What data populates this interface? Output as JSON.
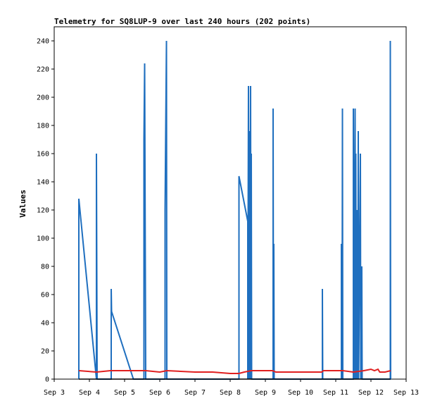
{
  "chart_data": {
    "type": "line",
    "title": "Telemetry for SQ8LUP-9 over last 240 hours (202 points)",
    "xlabel": "",
    "ylabel": "Values",
    "x_unit": "date (September)",
    "xlim": [
      3,
      13
    ],
    "ylim": [
      0,
      250
    ],
    "x_ticks": [
      3,
      4,
      5,
      6,
      7,
      8,
      9,
      10,
      11,
      12,
      13
    ],
    "x_tick_labels": [
      "Sep 3",
      "Sep 4",
      "Sep 5",
      "Sep 6",
      "Sep 7",
      "Sep 8",
      "Sep 9",
      "Sep 10",
      "Sep 11",
      "Sep 12",
      "Sep 13"
    ],
    "y_ticks": [
      0,
      20,
      40,
      60,
      80,
      100,
      120,
      140,
      160,
      180,
      200,
      220,
      240
    ],
    "grid": false,
    "legend": "none",
    "series": [
      {
        "color": "#1f6fbf",
        "points": [
          [
            3.7,
            0
          ],
          [
            3.7,
            128
          ],
          [
            4.2,
            0
          ],
          [
            4.2,
            160
          ],
          [
            4.22,
            0
          ],
          [
            4.62,
            0
          ],
          [
            4.62,
            64
          ],
          [
            4.63,
            48
          ],
          [
            5.25,
            0
          ],
          [
            5.55,
            0
          ],
          [
            5.55,
            170
          ],
          [
            5.57,
            224
          ],
          [
            5.6,
            0
          ],
          [
            6.15,
            0
          ],
          [
            6.15,
            120
          ],
          [
            6.19,
            240
          ],
          [
            6.2,
            0
          ],
          [
            8.25,
            0
          ],
          [
            8.25,
            144
          ],
          [
            8.5,
            112
          ],
          [
            8.5,
            0
          ],
          [
            8.52,
            208
          ],
          [
            8.54,
            0
          ],
          [
            8.55,
            176
          ],
          [
            8.57,
            0
          ],
          [
            8.58,
            208
          ],
          [
            8.59,
            0
          ],
          [
            8.6,
            160
          ],
          [
            8.61,
            0
          ],
          [
            9.22,
            0
          ],
          [
            9.22,
            192
          ],
          [
            9.23,
            0
          ],
          [
            9.24,
            96
          ],
          [
            9.25,
            0
          ],
          [
            10.62,
            0
          ],
          [
            10.62,
            64
          ],
          [
            10.63,
            0
          ],
          [
            11.16,
            0
          ],
          [
            11.16,
            96
          ],
          [
            11.18,
            0
          ],
          [
            11.19,
            192
          ],
          [
            11.2,
            0
          ],
          [
            11.5,
            0
          ],
          [
            11.5,
            192
          ],
          [
            11.52,
            0
          ],
          [
            11.55,
            192
          ],
          [
            11.56,
            0
          ],
          [
            11.57,
            160
          ],
          [
            11.58,
            0
          ],
          [
            11.6,
            120
          ],
          [
            11.61,
            0
          ],
          [
            11.62,
            72
          ],
          [
            11.63,
            0
          ],
          [
            11.64,
            176
          ],
          [
            11.65,
            0
          ],
          [
            11.7,
            160
          ],
          [
            11.71,
            0
          ],
          [
            11.74,
            80
          ],
          [
            11.75,
            0
          ],
          [
            12.55,
            0
          ],
          [
            12.55,
            240
          ],
          [
            12.56,
            0
          ]
        ]
      },
      {
        "color": "#e02020",
        "points": [
          [
            3.7,
            6
          ],
          [
            4.2,
            5
          ],
          [
            4.6,
            6
          ],
          [
            5.0,
            6
          ],
          [
            5.6,
            6
          ],
          [
            6.0,
            5
          ],
          [
            6.2,
            6
          ],
          [
            7.0,
            5
          ],
          [
            7.5,
            5
          ],
          [
            8.0,
            4
          ],
          [
            8.25,
            4
          ],
          [
            8.4,
            5
          ],
          [
            8.6,
            6
          ],
          [
            9.2,
            6
          ],
          [
            9.3,
            5
          ],
          [
            10.0,
            5
          ],
          [
            10.6,
            5
          ],
          [
            10.65,
            6
          ],
          [
            11.2,
            6
          ],
          [
            11.5,
            5
          ],
          [
            11.8,
            6
          ],
          [
            12.0,
            7
          ],
          [
            12.1,
            6
          ],
          [
            12.2,
            7
          ],
          [
            12.25,
            5
          ],
          [
            12.4,
            5
          ],
          [
            12.56,
            6
          ]
        ]
      },
      {
        "color": "#000000",
        "points": [
          [
            3.7,
            0
          ],
          [
            12.56,
            0
          ]
        ]
      }
    ]
  }
}
